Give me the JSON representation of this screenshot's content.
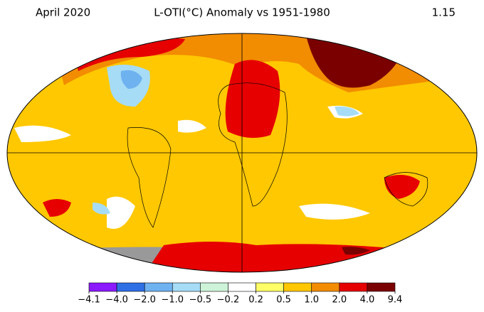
{
  "header": {
    "date": "April 2020",
    "title": "L-OTI(°C) Anomaly vs 1951-1980",
    "global_mean": 1.15
  },
  "colorbar": {
    "ticks": [
      {
        "value": -4.1,
        "label": "−4.1"
      },
      {
        "value": -4.0,
        "label": "−4.0"
      },
      {
        "value": -2.0,
        "label": "−2.0"
      },
      {
        "value": -1.0,
        "label": "−1.0"
      },
      {
        "value": -0.5,
        "label": "−0.5"
      },
      {
        "value": -0.2,
        "label": "−0.2"
      },
      0.2,
      0.5,
      {
        "value": 1.0,
        "label": "1.0"
      },
      {
        "value": 2.0,
        "label": "2.0"
      },
      {
        "value": 4.0,
        "label": "4.0"
      },
      9.4
    ],
    "colors": [
      "#8b1aff",
      "#2f6fe6",
      "#6fb2f0",
      "#a6dcf6",
      "#cdf3d8",
      "#ffffff",
      "#ffff66",
      "#ffc800",
      "#f28c00",
      "#e60000",
      "#7a0000"
    ]
  }
}
